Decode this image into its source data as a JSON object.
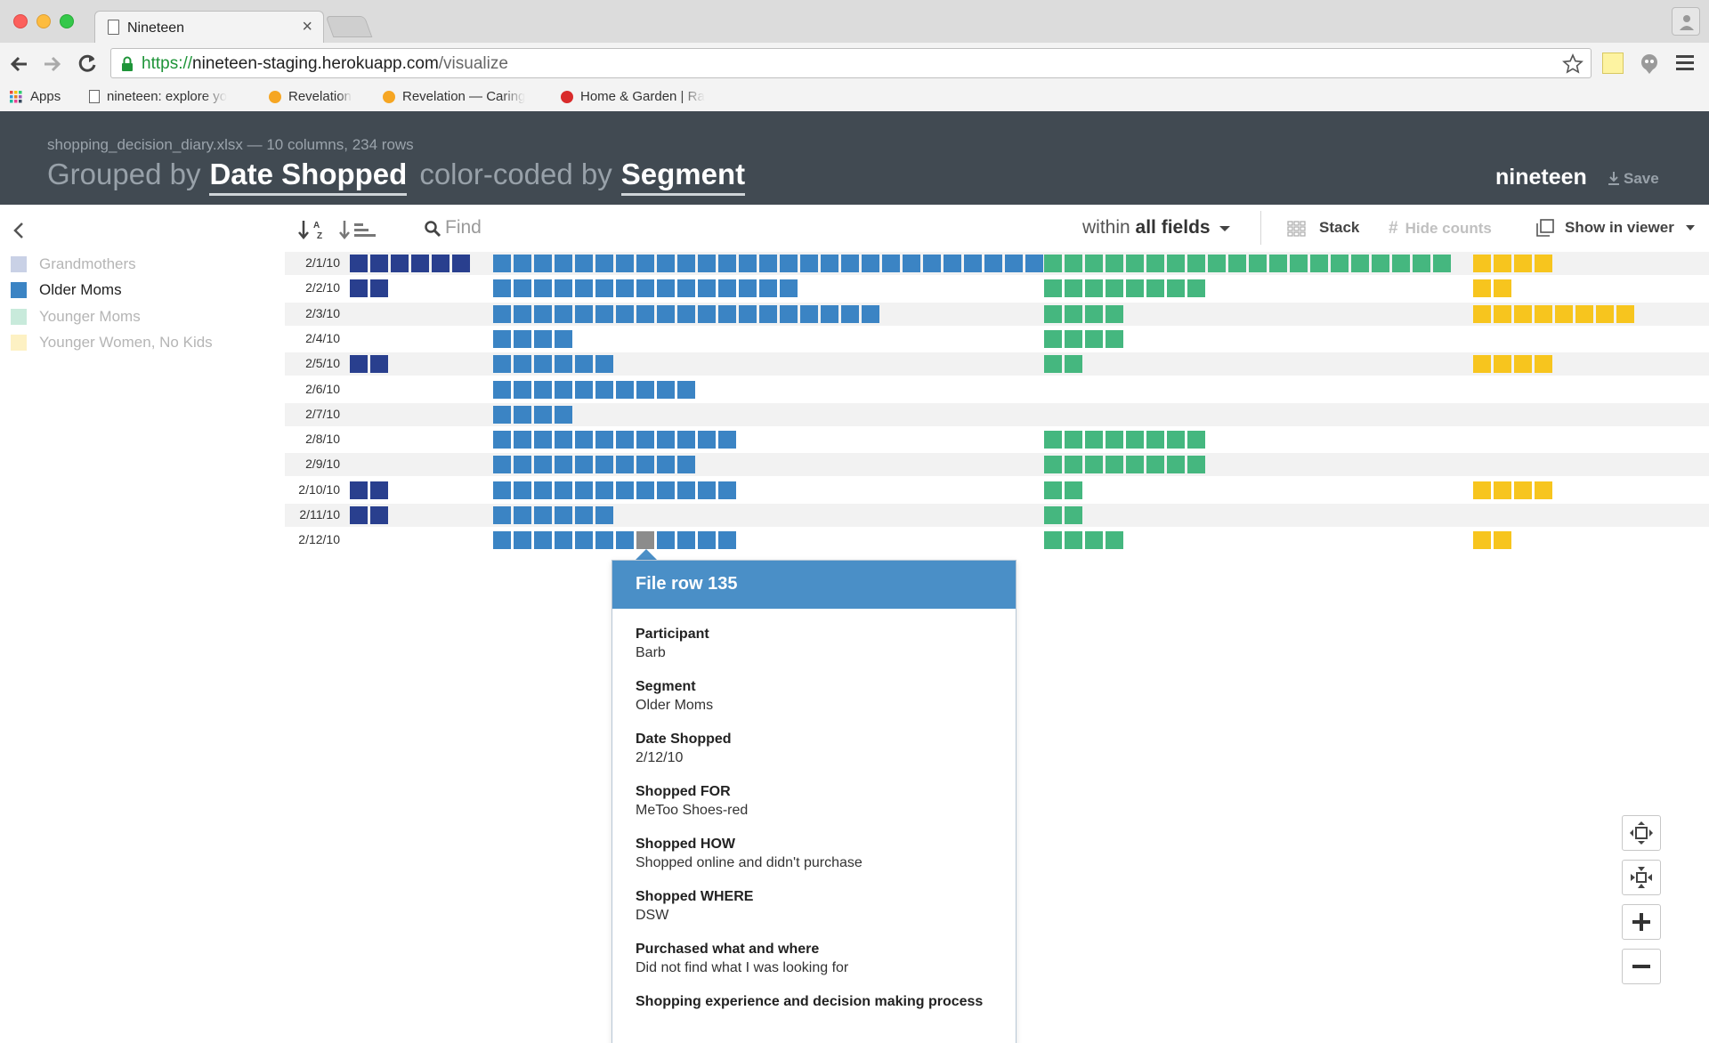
{
  "browser": {
    "tab_title": "Nineteen",
    "tab_close": "×",
    "url_scheme": "https://",
    "url_host": "nineteen-staging.herokuapp.com",
    "url_path": "/visualize",
    "bookmarks": [
      {
        "label": "Apps",
        "icon": "apps-grid-icon"
      },
      {
        "label": "nineteen: explore yo",
        "icon": "page-icon"
      },
      {
        "label": "Revelation",
        "icon": "revelation-icon",
        "color": "#f6a623"
      },
      {
        "label": "Revelation — Caring",
        "icon": "revelation-icon",
        "color": "#f6a623"
      },
      {
        "label": "Home & Garden | Ra",
        "icon": "red-dot-icon",
        "color": "#d92b2b"
      }
    ]
  },
  "header": {
    "file_info": "shopping_decision_diary.xlsx — 10 columns, 234 rows",
    "grouped_prefix": "Grouped by",
    "grouped_field": "Date Shopped",
    "color_prefix": "color-coded by",
    "color_field": "Segment",
    "brand": "nineteen",
    "save_label": "Save"
  },
  "legend": {
    "items": [
      {
        "label": "Grandmothers",
        "color": "#c9d1e6",
        "text_color": "#b5b5b5"
      },
      {
        "label": "Older Moms",
        "color": "#3b84c4",
        "text_color": "#222222"
      },
      {
        "label": "Younger Moms",
        "color": "#c8eadb",
        "text_color": "#b5b5b5"
      },
      {
        "label": "Younger Women, No Kids",
        "color": "#fdf1c3",
        "text_color": "#b5b5b5"
      }
    ]
  },
  "toolbar": {
    "find_placeholder": "Find",
    "within_prefix": "within",
    "within_value": "all fields",
    "stack_label": "Stack",
    "hide_counts_label": "Hide counts",
    "viewer_label": "Show in viewer"
  },
  "colors": {
    "grandmothers": "#293f8e",
    "older_moms": "#3b84c4",
    "younger_moms": "#45b77f",
    "younger_women": "#f7c51e",
    "selected": "#8c8c8c"
  },
  "grid": {
    "segments": [
      "grandmothers",
      "older_moms",
      "younger_moms",
      "younger_women"
    ],
    "selected": {
      "row": 11,
      "segment": "older_moms",
      "index": 7
    },
    "rows": [
      {
        "date": "2/1/10",
        "counts": [
          6,
          27,
          20,
          4
        ]
      },
      {
        "date": "2/2/10",
        "counts": [
          2,
          15,
          8,
          2
        ]
      },
      {
        "date": "2/3/10",
        "counts": [
          0,
          19,
          4,
          8
        ]
      },
      {
        "date": "2/4/10",
        "counts": [
          0,
          4,
          4,
          0
        ]
      },
      {
        "date": "2/5/10",
        "counts": [
          2,
          6,
          2,
          4
        ]
      },
      {
        "date": "2/6/10",
        "counts": [
          0,
          10,
          0,
          0
        ]
      },
      {
        "date": "2/7/10",
        "counts": [
          0,
          4,
          0,
          0
        ]
      },
      {
        "date": "2/8/10",
        "counts": [
          0,
          12,
          8,
          0
        ]
      },
      {
        "date": "2/9/10",
        "counts": [
          0,
          10,
          8,
          0
        ]
      },
      {
        "date": "2/10/10",
        "counts": [
          2,
          12,
          2,
          4
        ]
      },
      {
        "date": "2/11/10",
        "counts": [
          2,
          6,
          2,
          0
        ]
      },
      {
        "date": "2/12/10",
        "counts": [
          0,
          12,
          4,
          2
        ]
      }
    ]
  },
  "tooltip": {
    "title": "File row 135",
    "fields": [
      {
        "label": "Participant",
        "value": "Barb"
      },
      {
        "label": "Segment",
        "value": "Older Moms"
      },
      {
        "label": "Date Shopped",
        "value": "2/12/10"
      },
      {
        "label": "Shopped FOR",
        "value": "MeToo Shoes-red"
      },
      {
        "label": "Shopped HOW",
        "value": "Shopped online and didn't purchase"
      },
      {
        "label": "Shopped WHERE",
        "value": "DSW"
      },
      {
        "label": "Purchased what and where",
        "value": "Did not find what I was looking for"
      },
      {
        "label": "Shopping experience and decision making process",
        "value": ""
      }
    ]
  }
}
